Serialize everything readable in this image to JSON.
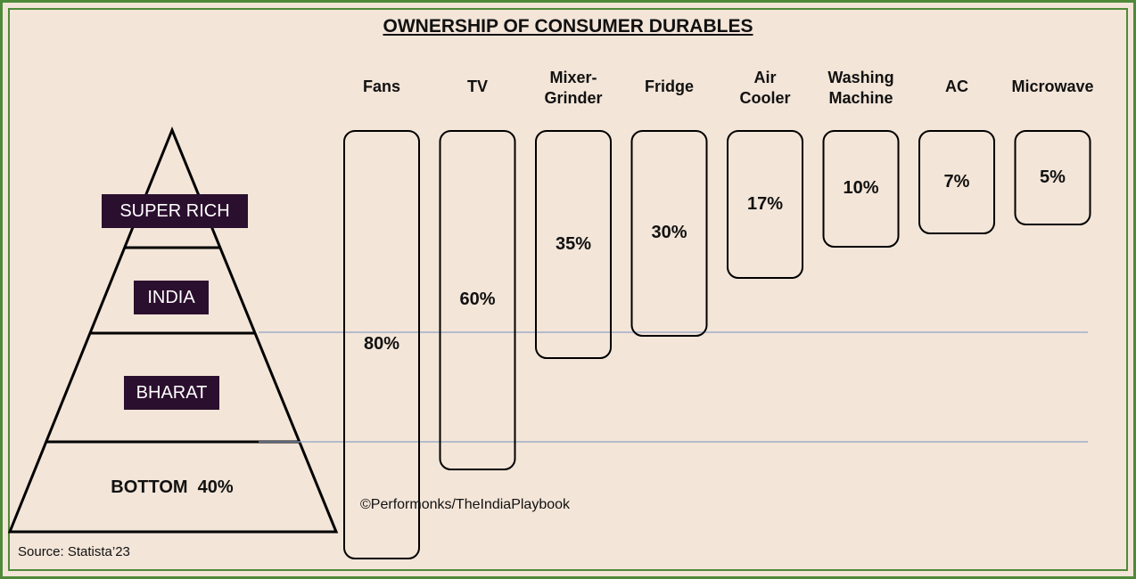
{
  "chart_data": {
    "type": "bar",
    "title": "OWNERSHIP OF CONSUMER DURABLES",
    "categories": [
      "Fans",
      "TV",
      "Mixer-\nGrinder",
      "Fridge",
      "Air\nCooler",
      "Washing\nMachine",
      "AC",
      "Microwave"
    ],
    "values": [
      80,
      60,
      35,
      30,
      17,
      10,
      7,
      5
    ],
    "value_labels": [
      "80%",
      "60%",
      "35%",
      "30%",
      "17%",
      "10%",
      "7%",
      "5%"
    ],
    "unit": "%",
    "ylim": [
      0,
      100
    ],
    "pyramid": {
      "segments": [
        "SUPER RICH",
        "INDIA",
        "BHARAT",
        "BOTTOM  40%"
      ]
    }
  },
  "footer": {
    "copyright": "©Performonks/TheIndiaPlaybook",
    "source": "Source: Statista’23"
  },
  "colors": {
    "background": "#f3e5d8",
    "border": "#4f8a3a",
    "label_fill": "#2b0f2e",
    "guide_line": "#8fa4c4"
  }
}
